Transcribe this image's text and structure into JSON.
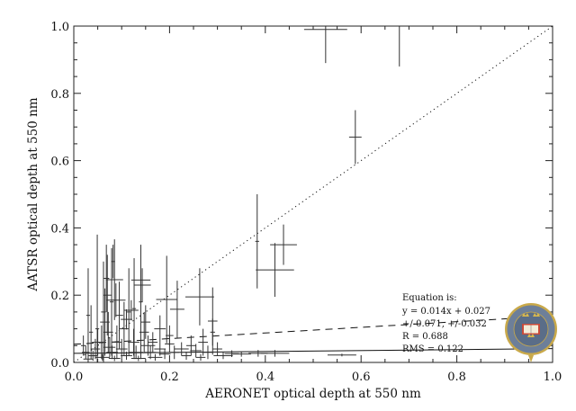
{
  "chart_data": {
    "type": "scatter",
    "title": "",
    "xlabel": "AERONET optical depth at 550 nm",
    "ylabel": "AATSR optical depth at 550 nm",
    "xlim": [
      0.0,
      1.0
    ],
    "ylim": [
      0.0,
      1.0
    ],
    "x_ticks": [
      "0.0",
      "0.2",
      "0.4",
      "0.6",
      "0.8",
      "1.0"
    ],
    "y_ticks": [
      "0.0",
      "0.2",
      "0.4",
      "0.6",
      "0.8",
      "1.0"
    ],
    "grid": false,
    "error_bars": true,
    "points_format": "[x, y, x_error, y_error]",
    "points": [
      [
        0.526,
        0.99,
        0.045,
        0.1
      ],
      [
        0.68,
        1.0,
        0.005,
        0.12
      ],
      [
        0.588,
        0.67,
        0.013,
        0.08
      ],
      [
        0.383,
        0.36,
        0.004,
        0.14
      ],
      [
        0.42,
        0.275,
        0.04,
        0.08
      ],
      [
        0.438,
        0.35,
        0.028,
        0.06
      ],
      [
        0.194,
        0.187,
        0.022,
        0.13
      ],
      [
        0.216,
        0.158,
        0.015,
        0.085
      ],
      [
        0.263,
        0.195,
        0.03,
        0.085
      ],
      [
        0.29,
        0.123,
        0.01,
        0.1
      ],
      [
        0.29,
        0.09,
        0.005,
        0.04
      ],
      [
        0.312,
        0.02,
        0.02,
        0.01
      ],
      [
        0.385,
        0.027,
        0.02,
        0.01
      ],
      [
        0.42,
        0.027,
        0.03,
        0.01
      ],
      [
        0.35,
        0.025,
        0.02,
        0.008
      ],
      [
        0.33,
        0.026,
        0.015,
        0.01
      ],
      [
        0.56,
        0.022,
        0.03,
        0.004
      ],
      [
        0.3,
        0.04,
        0.01,
        0.02
      ],
      [
        0.049,
        0.1,
        0.004,
        0.28
      ],
      [
        0.079,
        0.18,
        0.004,
        0.16
      ],
      [
        0.062,
        0.15,
        0.005,
        0.15
      ],
      [
        0.03,
        0.14,
        0.004,
        0.14
      ],
      [
        0.036,
        0.09,
        0.004,
        0.08
      ],
      [
        0.085,
        0.246,
        0.018,
        0.12
      ],
      [
        0.088,
        0.185,
        0.02,
        0.05
      ],
      [
        0.115,
        0.15,
        0.004,
        0.13
      ],
      [
        0.126,
        0.16,
        0.004,
        0.15
      ],
      [
        0.14,
        0.18,
        0.004,
        0.17
      ],
      [
        0.143,
        0.23,
        0.018,
        0.05
      ],
      [
        0.14,
        0.245,
        0.02,
        0.03
      ],
      [
        0.12,
        0.155,
        0.015,
        0.03
      ],
      [
        0.11,
        0.128,
        0.012,
        0.03
      ],
      [
        0.147,
        0.09,
        0.01,
        0.06
      ],
      [
        0.155,
        0.05,
        0.015,
        0.03
      ],
      [
        0.07,
        0.2,
        0.008,
        0.12
      ],
      [
        0.065,
        0.12,
        0.01,
        0.1
      ],
      [
        0.072,
        0.09,
        0.01,
        0.06
      ],
      [
        0.058,
        0.06,
        0.008,
        0.05
      ],
      [
        0.045,
        0.04,
        0.01,
        0.03
      ],
      [
        0.025,
        0.03,
        0.008,
        0.02
      ],
      [
        0.02,
        0.05,
        0.005,
        0.03
      ],
      [
        0.04,
        0.02,
        0.01,
        0.015
      ],
      [
        0.06,
        0.015,
        0.015,
        0.01
      ],
      [
        0.08,
        0.03,
        0.012,
        0.02
      ],
      [
        0.09,
        0.06,
        0.01,
        0.05
      ],
      [
        0.1,
        0.04,
        0.012,
        0.03
      ],
      [
        0.105,
        0.1,
        0.01,
        0.08
      ],
      [
        0.095,
        0.14,
        0.008,
        0.1
      ],
      [
        0.13,
        0.03,
        0.015,
        0.02
      ],
      [
        0.125,
        0.06,
        0.012,
        0.04
      ],
      [
        0.16,
        0.03,
        0.012,
        0.02
      ],
      [
        0.165,
        0.06,
        0.01,
        0.03
      ],
      [
        0.17,
        0.015,
        0.015,
        0.01
      ],
      [
        0.18,
        0.04,
        0.012,
        0.02
      ],
      [
        0.19,
        0.025,
        0.012,
        0.015
      ],
      [
        0.2,
        0.08,
        0.008,
        0.03
      ],
      [
        0.21,
        0.03,
        0.01,
        0.02
      ],
      [
        0.225,
        0.04,
        0.015,
        0.02
      ],
      [
        0.235,
        0.02,
        0.01,
        0.012
      ],
      [
        0.245,
        0.05,
        0.01,
        0.03
      ],
      [
        0.255,
        0.035,
        0.012,
        0.02
      ],
      [
        0.265,
        0.015,
        0.01,
        0.01
      ],
      [
        0.27,
        0.06,
        0.01,
        0.04
      ],
      [
        0.28,
        0.03,
        0.01,
        0.02
      ],
      [
        0.05,
        0.06,
        0.012,
        0.04
      ],
      [
        0.075,
        0.045,
        0.012,
        0.03
      ],
      [
        0.11,
        0.02,
        0.012,
        0.012
      ],
      [
        0.085,
        0.012,
        0.012,
        0.008
      ],
      [
        0.135,
        0.012,
        0.015,
        0.008
      ],
      [
        0.03,
        0.01,
        0.01,
        0.008
      ],
      [
        0.068,
        0.25,
        0.006,
        0.1
      ],
      [
        0.082,
        0.3,
        0.004,
        0.05
      ],
      [
        0.15,
        0.12,
        0.01,
        0.05
      ],
      [
        0.18,
        0.1,
        0.012,
        0.04
      ],
      [
        0.2,
        0.055,
        0.01,
        0.025
      ]
    ],
    "lines": [
      {
        "style": "dotted",
        "slope": 1.0,
        "intercept": 0.0
      },
      {
        "style": "dashed",
        "slope": 0.084,
        "intercept": 0.054
      },
      {
        "style": "solid",
        "slope": 0.014,
        "intercept": 0.027
      }
    ],
    "annotations": [
      "Equation is:",
      "y = 0.014x + 0.027",
      "+/-0.071, +/-0.032",
      "R = 0.688",
      "RMS = 0.122"
    ]
  },
  "logo": {
    "text": "UNIVERSITY OF OXFORD",
    "colors": {
      "field": "#6d7f99",
      "ring": "#c9a94a",
      "book": "#c84a3a"
    }
  }
}
